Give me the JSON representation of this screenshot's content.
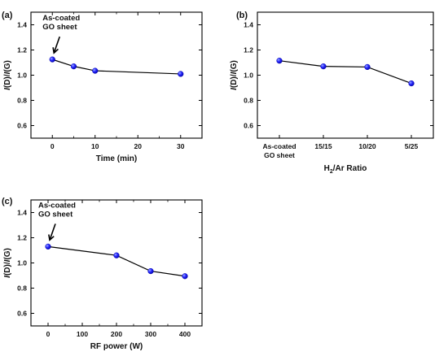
{
  "chart_data": [
    {
      "panel_label": "(a)",
      "type": "line",
      "x": [
        0,
        5,
        10,
        30
      ],
      "y": [
        1.125,
        1.07,
        1.035,
        1.01
      ],
      "xlabel": "Time (min)",
      "ylabel": "I(D)/I(G)",
      "xlim": [
        -5,
        35
      ],
      "ylim": [
        0.5,
        1.5
      ],
      "xticks": [
        0,
        10,
        20,
        30
      ],
      "yticks": [
        0.6,
        0.8,
        1.0,
        1.2,
        1.4
      ],
      "annotation": [
        "As-coated",
        "GO sheet"
      ],
      "marker_color": "#1a1aff"
    },
    {
      "panel_label": "(b)",
      "type": "line",
      "categories": [
        "As-coated GO sheet",
        "15/15",
        "10/20",
        "5/25"
      ],
      "category_lines": [
        [
          "As-coated",
          "GO sheet"
        ],
        [
          "15/15"
        ],
        [
          "10/20"
        ],
        [
          "5/25"
        ]
      ],
      "y": [
        1.115,
        1.07,
        1.065,
        0.935
      ],
      "xlabel": "H2/Ar Ratio",
      "ylabel": "I(D)/I(G)",
      "ylim": [
        0.5,
        1.5
      ],
      "yticks": [
        0.6,
        0.8,
        1.0,
        1.2,
        1.4
      ],
      "marker_color": "#1a1aff"
    },
    {
      "panel_label": "(c)",
      "type": "line",
      "x": [
        0,
        200,
        300,
        400
      ],
      "y": [
        1.13,
        1.06,
        0.935,
        0.895
      ],
      "xlabel": "RF power (W)",
      "ylabel": "I(D)/I(G)",
      "xlim": [
        -50,
        450
      ],
      "ylim": [
        0.5,
        1.5
      ],
      "xticks": [
        0,
        100,
        200,
        300,
        400
      ],
      "yticks": [
        0.6,
        0.8,
        1.0,
        1.2,
        1.4
      ],
      "annotation": [
        "As-coated",
        "GO sheet"
      ],
      "marker_color": "#1a1aff"
    }
  ]
}
